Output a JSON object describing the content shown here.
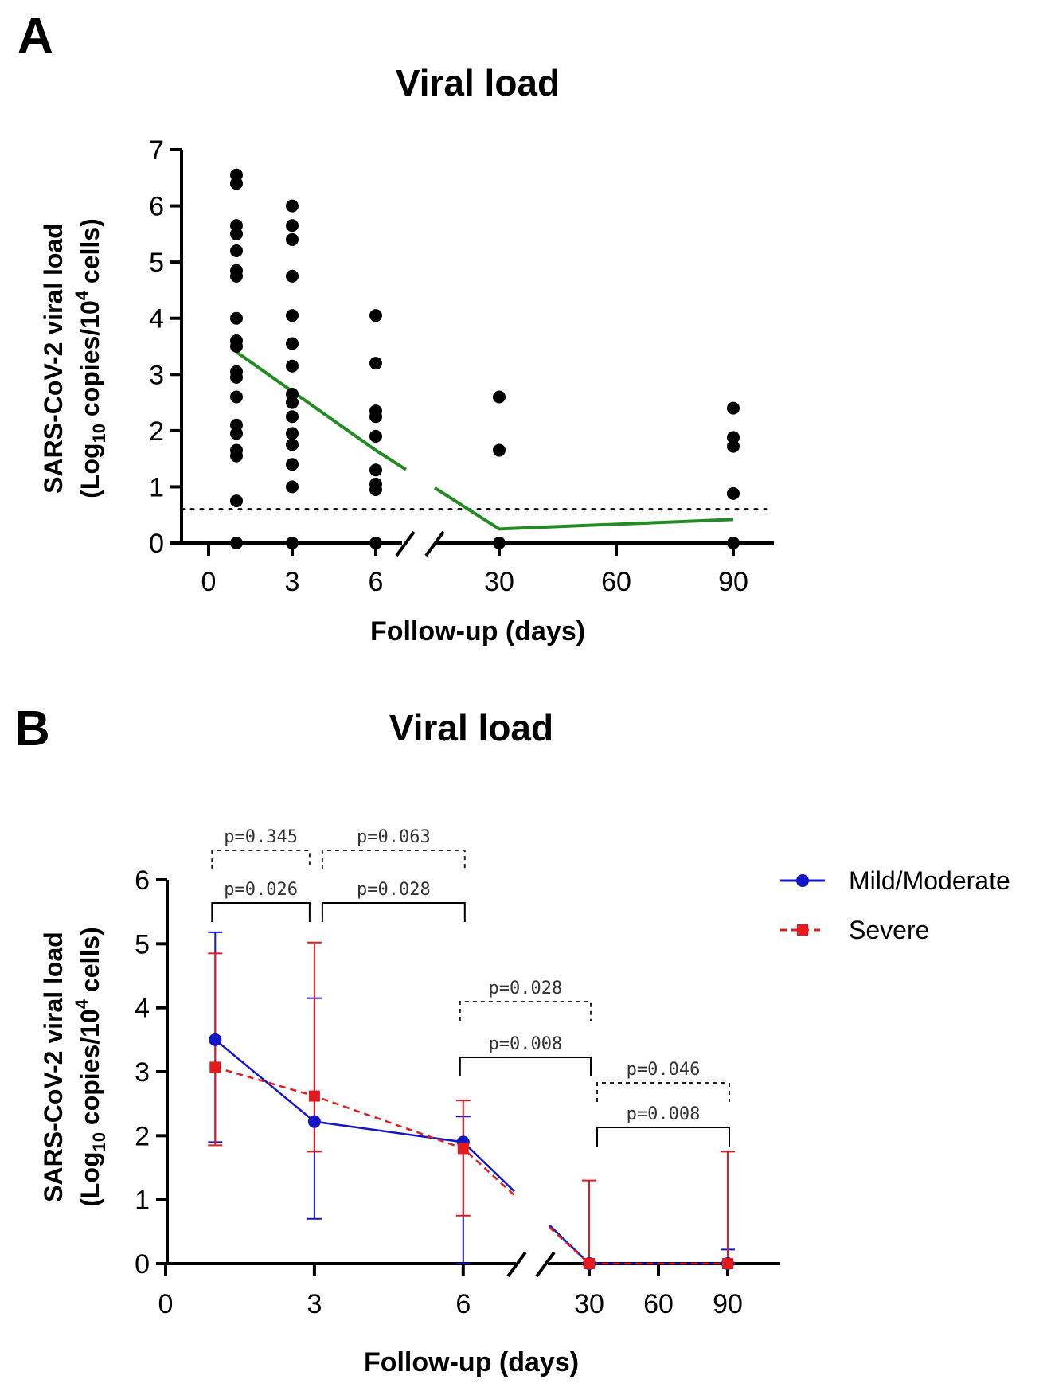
{
  "chart_data": [
    {
      "panel": "A",
      "type": "scatter",
      "title": "Viral load",
      "xlabel": "Follow-up (days)",
      "ylabel_line1": "SARS-CoV-2 viral load",
      "ylabel_line2": "(Log10 copies/10^4 cells)",
      "y_ticks": [
        "0",
        "1",
        "2",
        "3",
        "4",
        "5",
        "6",
        "7"
      ],
      "ylim": [
        0,
        7
      ],
      "x_ticks_left": [
        "0",
        "3",
        "6"
      ],
      "x_ticks_right": [
        "30",
        "60",
        "90"
      ],
      "detection_limit": 0.6,
      "points": [
        {
          "x": 1,
          "ys": [
            6.55,
            6.4,
            5.65,
            5.5,
            5.2,
            4.85,
            4.75,
            4.0,
            3.6,
            3.5,
            3.05,
            2.95,
            2.6,
            2.1,
            1.95,
            1.65,
            1.55,
            0.75,
            0.0
          ]
        },
        {
          "x": 3,
          "ys": [
            6.0,
            5.65,
            5.4,
            4.75,
            4.05,
            3.55,
            3.15,
            2.65,
            2.5,
            2.25,
            1.95,
            1.75,
            1.4,
            1.0,
            0.0
          ]
        },
        {
          "x": 6,
          "ys": [
            4.05,
            3.2,
            2.35,
            2.25,
            1.9,
            1.3,
            1.05,
            0.95,
            0.0
          ]
        },
        {
          "x": 30,
          "ys": [
            2.6,
            1.65,
            0.0
          ]
        },
        {
          "x": 90,
          "ys": [
            2.4,
            1.88,
            1.72,
            0.88,
            0.0
          ]
        }
      ],
      "trend_line": {
        "color": "#228B22",
        "points": [
          [
            1,
            3.4
          ],
          [
            3,
            2.7
          ],
          [
            6,
            1.65
          ],
          [
            30,
            0.25
          ],
          [
            90,
            0.42
          ]
        ]
      }
    },
    {
      "panel": "B",
      "type": "line",
      "title": "Viral load",
      "xlabel": "Follow-up (days)",
      "ylabel_line1": "SARS-CoV-2 viral load",
      "ylabel_line2": "(Log10 copies/10^4 cells)",
      "y_ticks": [
        "0",
        "1",
        "2",
        "3",
        "4",
        "5",
        "6"
      ],
      "ylim": [
        0,
        6
      ],
      "x_ticks_left": [
        "0",
        "3",
        "6"
      ],
      "x_ticks_right": [
        "30",
        "60",
        "90"
      ],
      "series": [
        {
          "name": "Mild/Moderate",
          "color": "#1515c8",
          "style": "solid",
          "marker": "circle",
          "points": [
            {
              "x": 1,
              "y": 3.5,
              "lo": 1.9,
              "hi": 5.18
            },
            {
              "x": 3,
              "y": 2.22,
              "lo": 0.7,
              "hi": 4.15
            },
            {
              "x": 6,
              "y": 1.9,
              "lo": 0.0,
              "hi": 2.3
            },
            {
              "x": 30,
              "y": 0.0,
              "lo": 0.0,
              "hi": 0.0
            },
            {
              "x": 90,
              "y": 0.0,
              "lo": 0.0,
              "hi": 0.22
            }
          ]
        },
        {
          "name": "Severe",
          "color": "#e41a1c",
          "style": "dashed",
          "marker": "square",
          "points": [
            {
              "x": 1,
              "y": 3.07,
              "lo": 1.85,
              "hi": 4.85
            },
            {
              "x": 3,
              "y": 2.62,
              "lo": 1.75,
              "hi": 5.02
            },
            {
              "x": 6,
              "y": 1.8,
              "lo": 0.75,
              "hi": 2.55
            },
            {
              "x": 30,
              "y": 0.0,
              "lo": 0.0,
              "hi": 1.3
            },
            {
              "x": 90,
              "y": 0.0,
              "lo": 0.0,
              "hi": 1.75
            }
          ]
        }
      ],
      "comparisons": [
        {
          "label": "p=0.345",
          "from": 1,
          "to": 3,
          "style": "dashed"
        },
        {
          "label": "p=0.063",
          "from": 3,
          "to": 6,
          "style": "dashed"
        },
        {
          "label": "p=0.026",
          "from": 1,
          "to": 3,
          "style": "solid"
        },
        {
          "label": "p=0.028",
          "from": 3,
          "to": 6,
          "style": "solid"
        },
        {
          "label": "p=0.028",
          "from": 6,
          "to": 30,
          "style": "dashed"
        },
        {
          "label": "p=0.008",
          "from": 6,
          "to": 30,
          "style": "solid"
        },
        {
          "label": "p=0.046",
          "from": 30,
          "to": 90,
          "style": "dashed"
        },
        {
          "label": "p=0.008",
          "from": 30,
          "to": 90,
          "style": "solid"
        }
      ]
    }
  ]
}
